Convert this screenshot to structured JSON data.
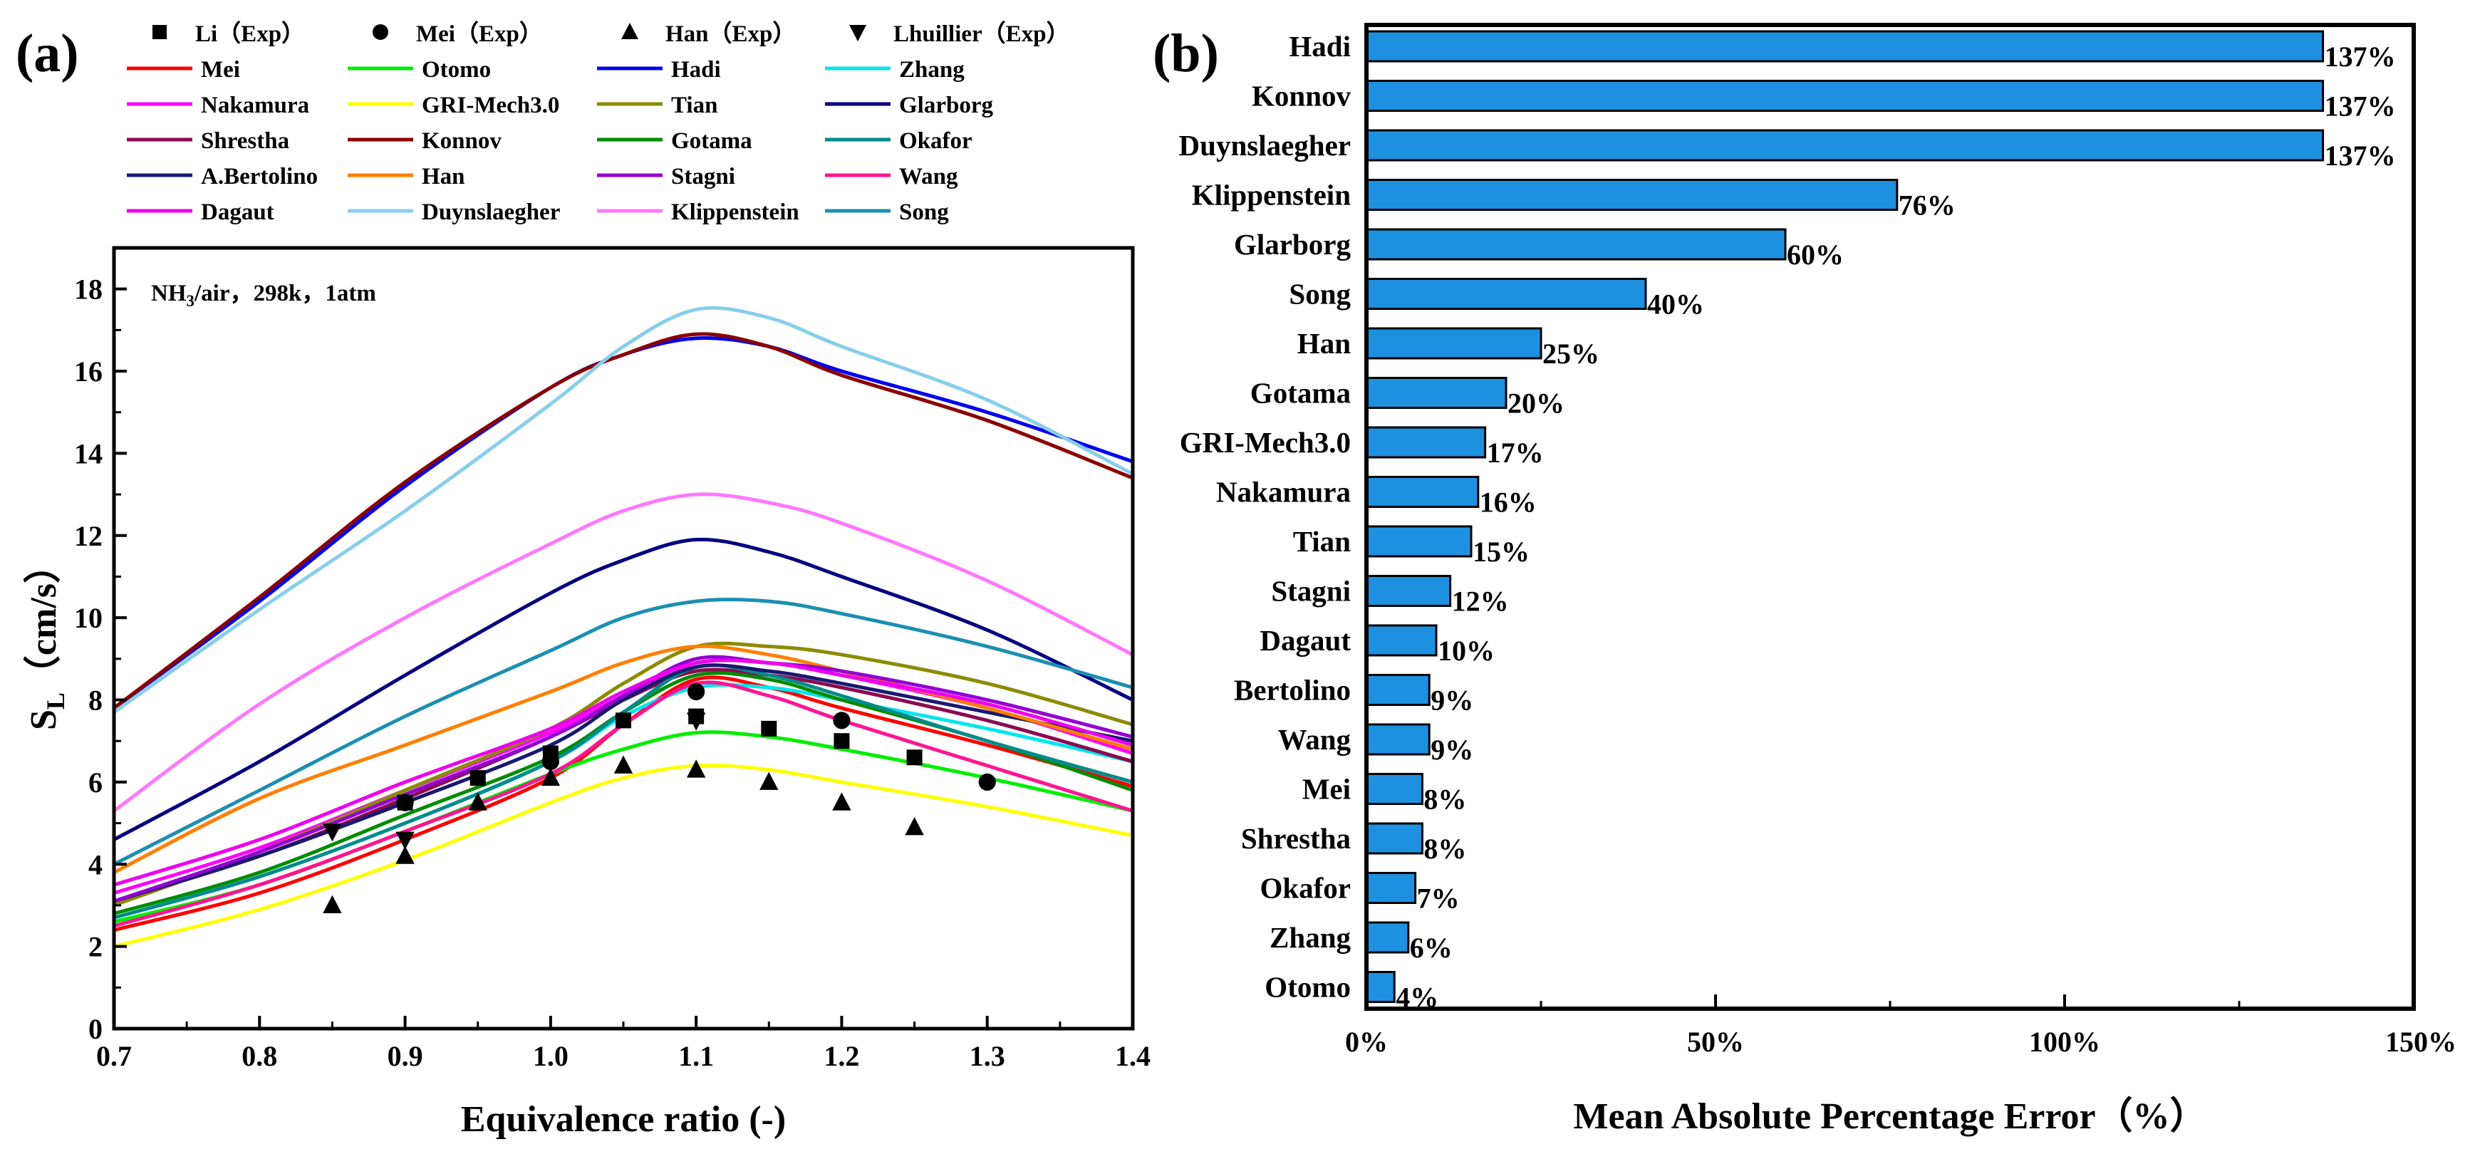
{
  "panel_a_label": "(a)",
  "panel_b_label": "(b)",
  "chart_data": [
    {
      "type": "line",
      "annotation_parts": {
        "a": "NH",
        "b": "3",
        "c": "/air，298k，1atm"
      },
      "xlabel": "Equivalence ratio (-)",
      "ylabel_parts": {
        "a": "S",
        "b": "L",
        "c": "（cm/s）"
      },
      "xlim": [
        0.7,
        1.4
      ],
      "ylim": [
        0,
        19
      ],
      "xticks": [
        "0.7",
        "0.8",
        "0.9",
        "1.0",
        "1.1",
        "1.2",
        "1.3",
        "1.4"
      ],
      "yticks": [
        "0",
        "2",
        "4",
        "6",
        "8",
        "10",
        "12",
        "14",
        "16",
        "18"
      ],
      "x": [
        0.7,
        0.8,
        0.9,
        1.0,
        1.05,
        1.1,
        1.15,
        1.2,
        1.3,
        1.4
      ],
      "series": [
        {
          "name": "Mei",
          "color": "#ff0000",
          "values": [
            2.4,
            3.3,
            4.6,
            6.1,
            7.4,
            8.5,
            8.3,
            7.8,
            6.9,
            5.9
          ]
        },
        {
          "name": "Otomo",
          "color": "#00ee00",
          "values": [
            2.6,
            3.5,
            4.8,
            6.2,
            6.8,
            7.2,
            7.1,
            6.8,
            6.1,
            5.3
          ]
        },
        {
          "name": "Hadi",
          "color": "#0000ee",
          "values": [
            7.8,
            10.4,
            13.2,
            15.6,
            16.4,
            16.8,
            16.6,
            16.0,
            15.0,
            13.8
          ]
        },
        {
          "name": "Zhang",
          "color": "#00e5ee",
          "values": [
            2.7,
            3.7,
            5.0,
            6.5,
            7.6,
            8.3,
            8.3,
            8.0,
            7.3,
            6.5
          ]
        },
        {
          "name": "Nakamura",
          "color": "#ff00ff",
          "values": [
            3.3,
            4.4,
            5.8,
            7.2,
            8.1,
            8.9,
            8.9,
            8.6,
            7.8,
            6.7
          ]
        },
        {
          "name": "GRI-Mech3.0",
          "color": "#ffff00",
          "values": [
            2.0,
            2.9,
            4.1,
            5.5,
            6.1,
            6.4,
            6.3,
            6.0,
            5.4,
            4.7
          ]
        },
        {
          "name": "Tian",
          "color": "#8b8b00",
          "values": [
            3.0,
            4.3,
            5.8,
            7.3,
            8.4,
            9.3,
            9.3,
            9.1,
            8.4,
            7.4
          ]
        },
        {
          "name": "Glarborg",
          "color": "#000080",
          "values": [
            4.6,
            6.5,
            8.6,
            10.6,
            11.4,
            11.9,
            11.6,
            11.0,
            9.7,
            8.0
          ]
        },
        {
          "name": "Shrestha",
          "color": "#8b0a50",
          "values": [
            3.1,
            4.2,
            5.6,
            7.1,
            8.0,
            8.7,
            8.6,
            8.3,
            7.5,
            6.5
          ]
        },
        {
          "name": "Konnov",
          "color": "#8b0000",
          "values": [
            7.8,
            10.5,
            13.3,
            15.6,
            16.4,
            16.9,
            16.6,
            15.9,
            14.8,
            13.4
          ]
        },
        {
          "name": "Gotama",
          "color": "#008b00",
          "values": [
            2.8,
            3.8,
            5.2,
            6.6,
            7.7,
            8.6,
            8.5,
            8.0,
            7.0,
            5.8
          ]
        },
        {
          "name": "Okafor",
          "color": "#008b8b",
          "values": [
            2.7,
            3.7,
            5.0,
            6.5,
            7.7,
            8.8,
            8.6,
            8.1,
            7.0,
            6.0
          ]
        },
        {
          "name": "A.Bertolino",
          "color": "#191970",
          "values": [
            3.1,
            4.2,
            5.5,
            6.9,
            8.0,
            8.8,
            8.7,
            8.4,
            7.7,
            7.0
          ]
        },
        {
          "name": "Han",
          "color": "#ff7f00",
          "values": [
            3.8,
            5.6,
            6.9,
            8.2,
            8.9,
            9.3,
            9.1,
            8.7,
            7.8,
            6.8
          ]
        },
        {
          "name": "Stagni",
          "color": "#9400d3",
          "values": [
            3.1,
            4.3,
            5.7,
            7.1,
            8.1,
            9.0,
            8.9,
            8.7,
            8.0,
            7.1
          ]
        },
        {
          "name": "Wang",
          "color": "#ff1493",
          "values": [
            2.5,
            3.5,
            4.8,
            6.2,
            7.4,
            8.4,
            8.1,
            7.5,
            6.4,
            5.3
          ]
        },
        {
          "name": "Dagaut",
          "color": "#ee00ee",
          "values": [
            3.5,
            4.6,
            6.0,
            7.3,
            8.2,
            8.9,
            8.9,
            8.6,
            7.9,
            6.9
          ]
        },
        {
          "name": "Duynslaegher",
          "color": "#87ceeb",
          "values": [
            7.7,
            10.2,
            12.6,
            15.2,
            16.6,
            17.5,
            17.3,
            16.6,
            15.3,
            13.5
          ]
        },
        {
          "name": "Klippenstein",
          "color": "#ff77ff",
          "values": [
            5.3,
            7.9,
            10.0,
            11.8,
            12.6,
            13.0,
            12.8,
            12.3,
            10.9,
            9.1
          ]
        },
        {
          "name": "Song",
          "color": "#1b8fb2",
          "values": [
            4.0,
            5.8,
            7.6,
            9.2,
            10.0,
            10.4,
            10.4,
            10.1,
            9.3,
            8.3
          ]
        }
      ],
      "experiments": [
        {
          "name": "Li（Exp）",
          "marker": "square",
          "x": [
            0.9,
            0.95,
            1.0,
            1.05,
            1.1,
            1.15,
            1.2,
            1.25
          ],
          "y": [
            5.5,
            6.1,
            6.7,
            7.5,
            7.6,
            7.3,
            7.0,
            6.6
          ]
        },
        {
          "name": "Mei（Exp）",
          "marker": "circle",
          "x": [
            0.9,
            1.0,
            1.1,
            1.2,
            1.3
          ],
          "y": [
            5.5,
            6.5,
            8.2,
            7.5,
            6.0
          ]
        },
        {
          "name": "Han（Exp）",
          "marker": "triangle-up",
          "x": [
            0.85,
            0.9,
            0.95,
            1.0,
            1.05,
            1.1,
            1.15,
            1.2,
            1.25
          ],
          "y": [
            3.0,
            4.2,
            5.5,
            6.1,
            6.4,
            6.3,
            6.0,
            5.5,
            4.9
          ]
        },
        {
          "name": "Lhuillier（Exp）",
          "marker": "triangle-down",
          "x": [
            0.85,
            0.9,
            1.1
          ],
          "y": [
            4.8,
            4.6,
            7.5
          ]
        }
      ]
    },
    {
      "type": "bar",
      "orientation": "horizontal",
      "xlabel": "Mean Absolute Percentage Error（%）",
      "xlim": [
        0,
        150
      ],
      "xticks": [
        "0%",
        "50%",
        "100%",
        "150%"
      ],
      "bar_color": "#1e90e0",
      "categories": [
        "Hadi",
        "Konnov",
        "Duynslaegher",
        "Klippenstein",
        "Glarborg",
        "Song",
        "Han",
        "Gotama",
        "GRI-Mech3.0",
        "Nakamura",
        "Tian",
        "Stagni",
        "Dagaut",
        "Bertolino",
        "Wang",
        "Mei",
        "Shrestha",
        "Okafor",
        "Zhang",
        "Otomo"
      ],
      "values": [
        137,
        137,
        137,
        76,
        60,
        40,
        25,
        20,
        17,
        16,
        15,
        12,
        10,
        9,
        9,
        8,
        8,
        7,
        6,
        4
      ],
      "value_labels": [
        "137%",
        "137%",
        "137%",
        "76%",
        "60%",
        "40%",
        "25%",
        "20%",
        "17%",
        "16%",
        "15%",
        "12%",
        "10%",
        "9%",
        "9%",
        "8%",
        "8%",
        "7%",
        "6%",
        "4%"
      ]
    }
  ]
}
